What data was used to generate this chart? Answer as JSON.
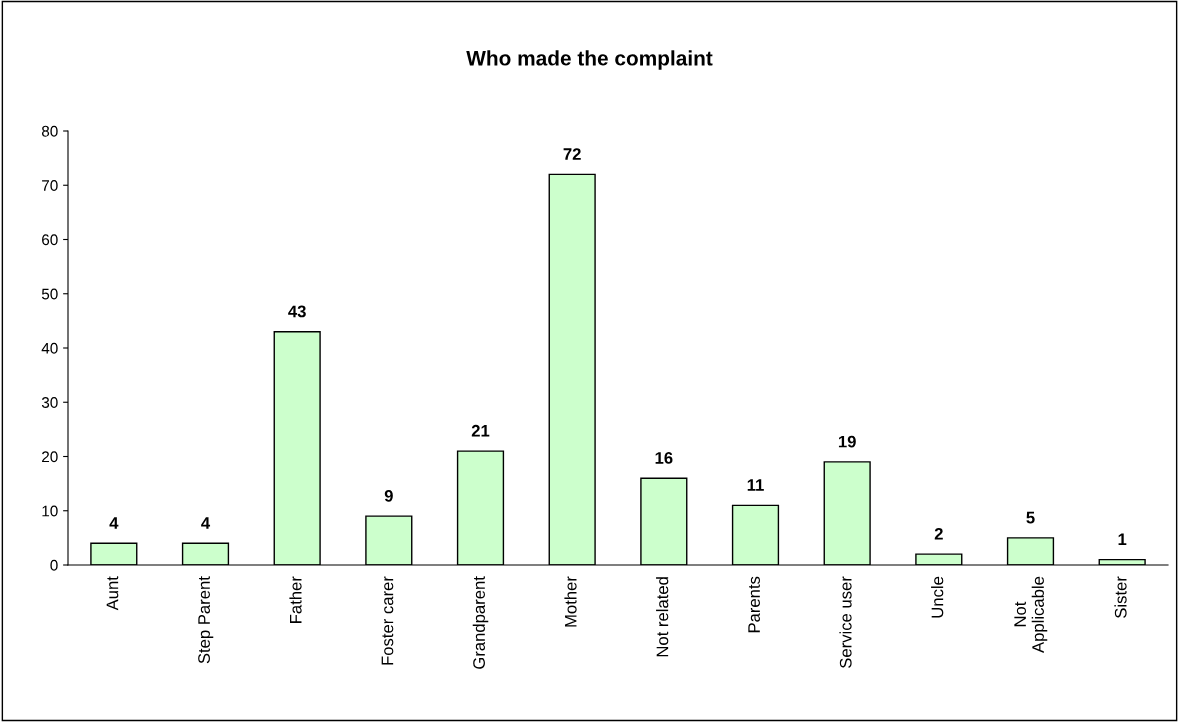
{
  "chart_data": {
    "type": "bar",
    "title": "Who made the complaint",
    "categories": [
      "Aunt",
      "Step Parent",
      "Father",
      "Foster carer",
      "Grandparent",
      "Mother",
      "Not related",
      "Parents",
      "Service user",
      "Uncle",
      "Not Applicable",
      "Sister"
    ],
    "values": [
      4,
      4,
      43,
      9,
      21,
      72,
      16,
      11,
      19,
      2,
      5,
      1
    ],
    "color": "#ccffcc",
    "ylim": [
      0,
      80
    ],
    "yticks": [
      0,
      10,
      20,
      30,
      40,
      50,
      60,
      70,
      80
    ],
    "data_labels": true,
    "grid": false,
    "legend": false
  }
}
